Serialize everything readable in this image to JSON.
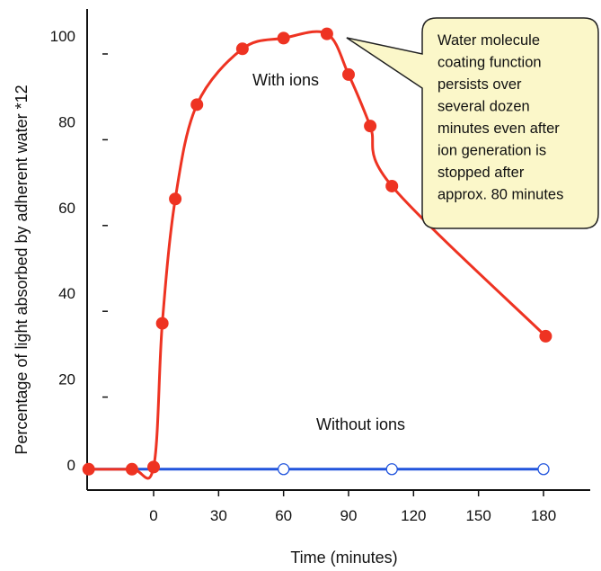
{
  "chart_data": {
    "type": "line",
    "title": "",
    "xlabel": "Time (minutes)",
    "ylabel": "Percentage of light absorbed by adherent water *12",
    "xlim": [
      -30,
      200
    ],
    "ylim": [
      -6,
      107
    ],
    "x_ticks": [
      0,
      30,
      60,
      90,
      120,
      150,
      180
    ],
    "x_tick_labels": [
      "0",
      "30",
      "60",
      "90",
      "120",
      "150",
      "180"
    ],
    "y_ticks": [
      0,
      20,
      40,
      60,
      80,
      100
    ],
    "y_tick_labels": [
      "0",
      "20",
      "40",
      "60",
      "80",
      "100"
    ],
    "grid": false,
    "series": [
      {
        "name": "With ions",
        "color": "#ee3322",
        "marker": "filled-circle",
        "x": [
          -30,
          -10,
          0,
          4,
          10,
          20,
          41,
          60,
          80,
          90,
          100,
          110,
          181
        ],
        "y": [
          -1,
          -1,
          -0.5,
          33,
          62,
          84,
          97,
          99.5,
          100.5,
          91,
          79,
          65,
          30
        ]
      },
      {
        "name": "Without ions",
        "color": "#2255dd",
        "marker": "open-circle",
        "x": [
          -30,
          60,
          110,
          180
        ],
        "y": [
          -1,
          -1,
          -1,
          -1
        ]
      }
    ],
    "annotations": [
      {
        "text": [
          "Water molecule",
          "coating function",
          "persists over",
          "several dozen",
          "minutes even after",
          "ion generation is",
          "stopped after",
          "approx. 80 minutes"
        ],
        "points_to": {
          "x": 80,
          "y": 100
        },
        "fill": "#fbf7c9"
      }
    ]
  }
}
